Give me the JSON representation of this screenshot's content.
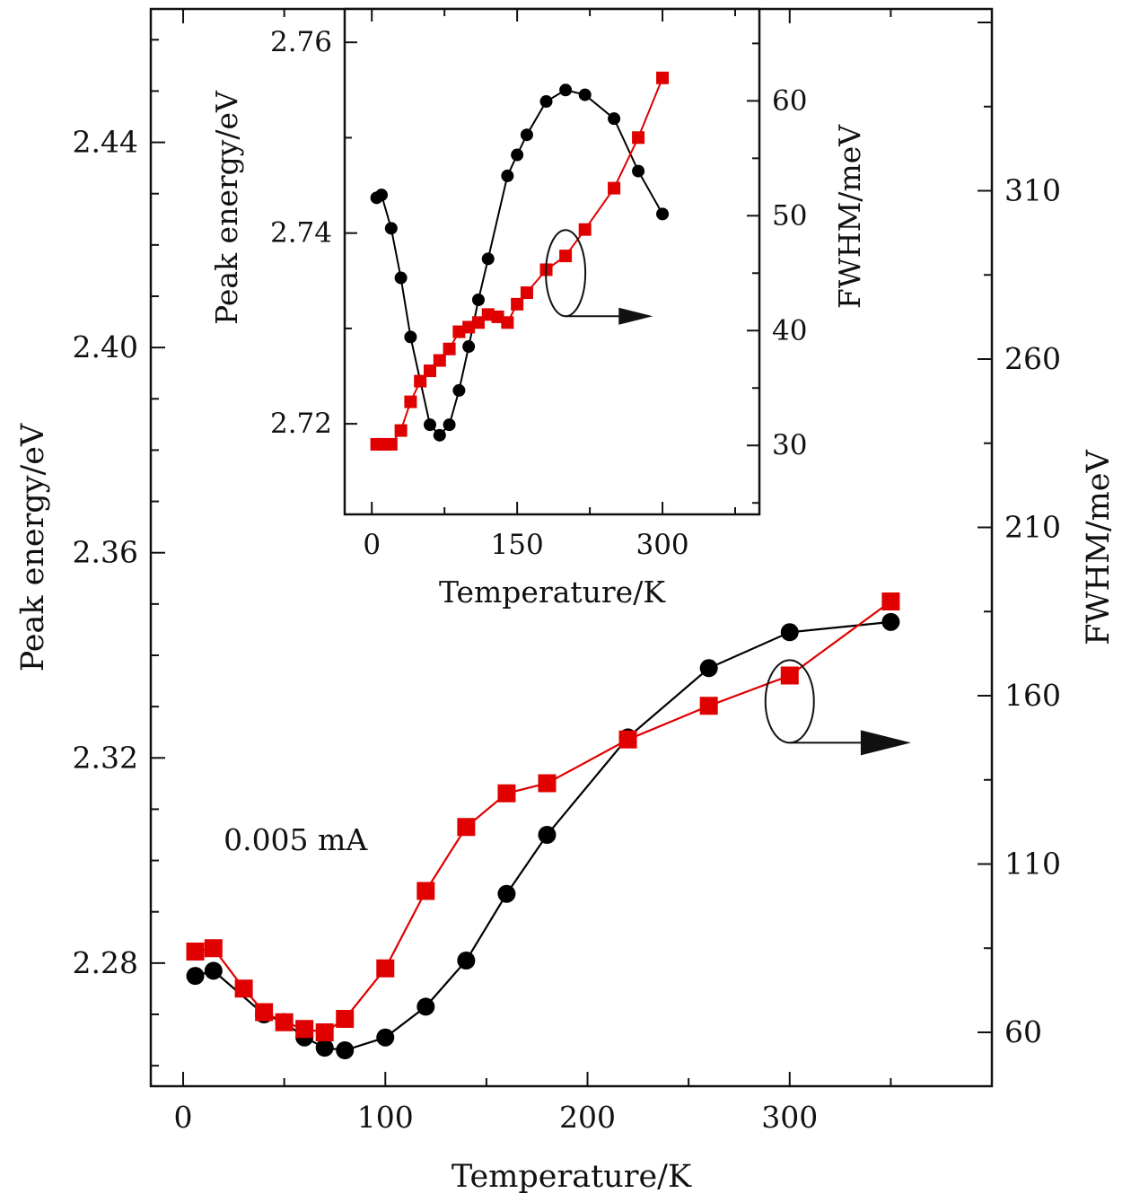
{
  "chart_data": [
    {
      "type": "line",
      "role": "main",
      "xlabel": "Temperature/K",
      "ylabel_left": "Peak energy/eV",
      "ylabel_right": "FWHM/meV",
      "xlim": [
        -16,
        400
      ],
      "ylim_left": [
        2.256,
        2.466
      ],
      "ylim_right": [
        44,
        364
      ],
      "x_ticks": [
        0,
        100,
        200,
        300
      ],
      "y_left_ticks": [
        2.28,
        2.32,
        2.36,
        2.4,
        2.44
      ],
      "y_right_ticks": [
        60,
        110,
        160,
        210,
        260,
        310
      ],
      "annotation": "0.005 mA",
      "series": [
        {
          "axis": "left",
          "color": "#000000",
          "marker": "circle",
          "x": [
            6,
            15,
            40,
            50,
            60,
            70,
            80,
            100,
            120,
            140,
            160,
            180,
            220,
            260,
            300,
            350
          ],
          "y": [
            2.2775,
            2.2785,
            2.27,
            2.2685,
            2.2655,
            2.2635,
            2.263,
            2.2655,
            2.2715,
            2.2805,
            2.2935,
            2.305,
            2.324,
            2.3375,
            2.3445,
            2.3465
          ]
        },
        {
          "axis": "right",
          "color": "#e00000",
          "marker": "square",
          "x": [
            6,
            15,
            30,
            40,
            50,
            60,
            70,
            80,
            100,
            120,
            140,
            160,
            180,
            220,
            260,
            300,
            350
          ],
          "y": [
            84,
            85,
            73,
            66,
            63,
            61,
            60,
            64,
            79,
            102,
            121,
            131,
            134,
            147,
            157,
            166,
            188
          ]
        }
      ]
    },
    {
      "type": "line",
      "role": "inset",
      "xlabel": "Temperature/K",
      "ylabel_left": "Peak energy/eV",
      "ylabel_right": "FWHM/meV",
      "xlim": [
        -28,
        400
      ],
      "ylim_left": [
        2.7105,
        2.7635
      ],
      "ylim_right": [
        24,
        68
      ],
      "x_ticks": [
        0,
        150,
        300
      ],
      "y_left_ticks": [
        2.72,
        2.74,
        2.76
      ],
      "y_right_ticks": [
        30,
        40,
        50,
        60
      ],
      "series": [
        {
          "axis": "left",
          "color": "#000000",
          "marker": "circle",
          "x": [
            5,
            10,
            20,
            30,
            40,
            60,
            70,
            80,
            90,
            100,
            110,
            120,
            140,
            150,
            160,
            180,
            200,
            220,
            250,
            275,
            300
          ],
          "y": [
            2.7437,
            2.744,
            2.7405,
            2.7353,
            2.7291,
            2.7199,
            2.7188,
            2.7199,
            2.7235,
            2.7281,
            2.733,
            2.7373,
            2.746,
            2.7482,
            2.7503,
            2.7538,
            2.755,
            2.7545,
            2.752,
            2.7465,
            2.742
          ]
        },
        {
          "axis": "right",
          "color": "#e00000",
          "marker": "square",
          "x": [
            5,
            10,
            20,
            30,
            40,
            50,
            60,
            70,
            80,
            90,
            100,
            110,
            120,
            130,
            140,
            150,
            160,
            180,
            200,
            220,
            250,
            275,
            300
          ],
          "y": [
            30.1,
            30.1,
            30.1,
            31.3,
            33.8,
            35.6,
            36.5,
            37.4,
            38.4,
            39.9,
            40.3,
            40.7,
            41.4,
            41.2,
            40.7,
            42.3,
            43.3,
            45.3,
            46.5,
            48.8,
            52.4,
            56.8,
            62.0
          ]
        }
      ]
    }
  ]
}
